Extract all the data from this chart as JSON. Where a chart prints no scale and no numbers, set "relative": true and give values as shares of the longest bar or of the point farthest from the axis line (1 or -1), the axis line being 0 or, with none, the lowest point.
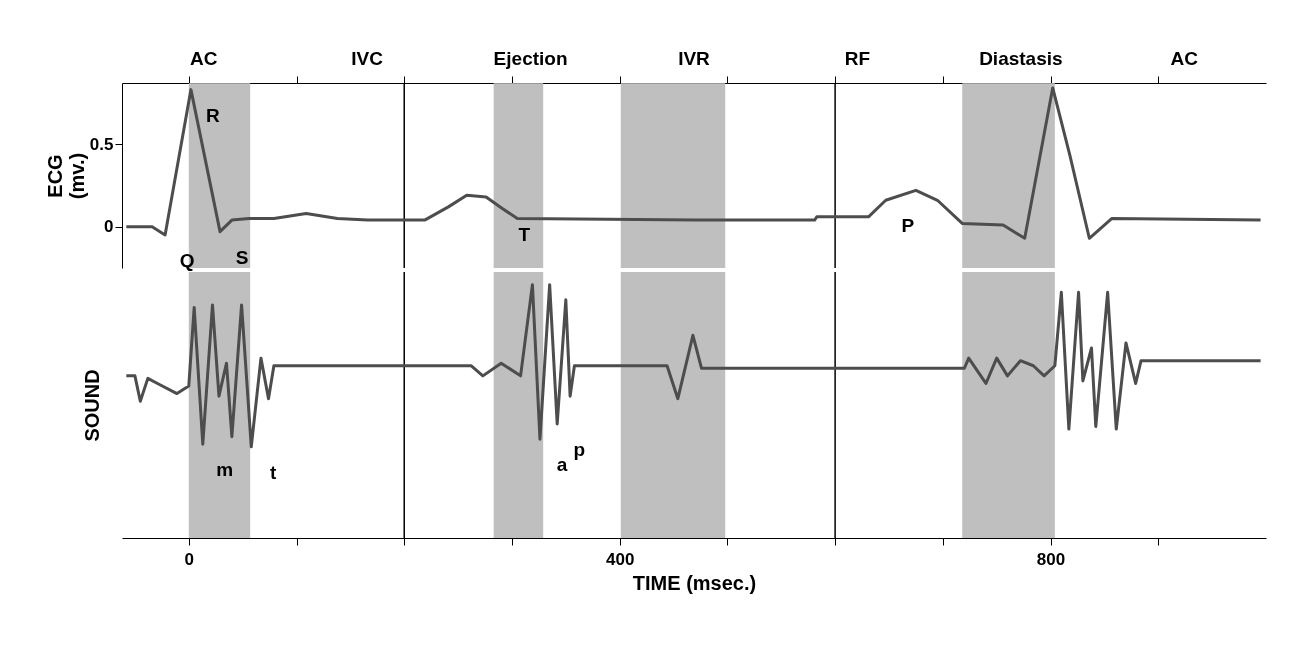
{
  "chart_data": [
    {
      "type": "line",
      "ylabel": "ECG (mv.)",
      "xlim": [
        -62,
        1000
      ],
      "ylim": [
        -0.25,
        0.87
      ],
      "yticks": [
        0,
        0.5
      ],
      "xticks": [
        {
          "value": 0,
          "label": null
        },
        {
          "value": 100,
          "label": null
        },
        {
          "value": 200,
          "label": null
        },
        {
          "value": 300,
          "label": null
        },
        {
          "value": 400,
          "label": null
        },
        {
          "value": 500,
          "label": null
        },
        {
          "value": 600,
          "label": null
        },
        {
          "value": 700,
          "label": null
        },
        {
          "value": 800,
          "label": null
        },
        {
          "value": 900,
          "label": null
        }
      ],
      "tick_labels": "y",
      "color": "#4d4d4d",
      "x": [
        -58,
        -34,
        -22,
        2,
        29,
        40,
        56,
        79,
        109,
        138,
        166,
        219,
        241,
        258,
        276,
        291,
        305,
        471,
        581,
        583,
        631,
        647,
        675,
        695,
        718,
        756,
        776,
        802,
        818,
        836,
        857,
        995
      ],
      "values": [
        0,
        0,
        -0.05,
        0.83,
        -0.03,
        0.04,
        0.05,
        0.05,
        0.08,
        0.05,
        0.04,
        0.04,
        0.12,
        0.19,
        0.18,
        0.11,
        0.05,
        0.04,
        0.04,
        0.06,
        0.06,
        0.16,
        0.22,
        0.16,
        0.02,
        0.01,
        -0.07,
        0.84,
        0.43,
        -0.07,
        0.05,
        0.04
      ],
      "bands": [
        {
          "axis": "x",
          "from": 0,
          "to": 57,
          "color": "#b4b4b4"
        },
        {
          "axis": "x",
          "from": 283,
          "to": 329,
          "color": "#b4b4b4"
        },
        {
          "axis": "x",
          "from": 401,
          "to": 498,
          "color": "#b4b4b4"
        },
        {
          "axis": "x",
          "from": 718,
          "to": 804,
          "color": "#b4b4b4"
        }
      ],
      "ref_lines": [
        {
          "axis": "x",
          "value": 200
        },
        {
          "axis": "x",
          "value": 600
        }
      ],
      "annotations": [
        "AC",
        "IVC",
        "Ejection",
        "IVR",
        "RF",
        "Diastasis",
        "AC",
        {
          "text": "R",
          "x": 2,
          "y": 0.83
        },
        {
          "text": "Q",
          "x": -22,
          "y": -0.05
        },
        {
          "text": "S",
          "x": 29,
          "y": -0.03
        },
        {
          "text": "T",
          "x": 291,
          "y": 0.11
        },
        {
          "text": "P",
          "x": 647,
          "y": 0.16
        }
      ]
    },
    {
      "type": "line",
      "relative": true,
      "ylabel": "SOUND",
      "xlabel": "TIME (msec.)",
      "xlim": [
        -62,
        1000
      ],
      "xticks": [
        0,
        {
          "value": 100,
          "label": null
        },
        {
          "value": 200,
          "label": null
        },
        {
          "value": 300,
          "label": null
        },
        400,
        {
          "value": 500,
          "label": null
        },
        {
          "value": 600,
          "label": null
        },
        {
          "value": 700,
          "label": null
        },
        800,
        {
          "value": 900,
          "label": null
        }
      ],
      "tick_labels": "x",
      "color": "#4d4d4d",
      "x": [
        -58,
        -50,
        -45,
        -38,
        -29,
        -11,
        0,
        5,
        13,
        22,
        28,
        35,
        40,
        49,
        58,
        67,
        74,
        79,
        262,
        273,
        290,
        308,
        319,
        326,
        335,
        342,
        350,
        354,
        358,
        444,
        454,
        468,
        476,
        720,
        724,
        740,
        750,
        760,
        772,
        784,
        794,
        804,
        810,
        817,
        826,
        830,
        838,
        842,
        853,
        861,
        870,
        879,
        884,
        995
      ],
      "values": [
        0.64,
        0.64,
        0.54,
        0.63,
        0.61,
        0.57,
        0.6,
        0.91,
        0.37,
        0.92,
        0.56,
        0.69,
        0.4,
        0.92,
        0.36,
        0.71,
        0.55,
        0.68,
        0.68,
        0.64,
        0.69,
        0.64,
        1,
        0.39,
        1,
        0.45,
        0.94,
        0.56,
        0.68,
        0.68,
        0.55,
        0.8,
        0.67,
        0.67,
        0.71,
        0.61,
        0.71,
        0.64,
        0.7,
        0.68,
        0.64,
        0.68,
        0.97,
        0.43,
        0.97,
        0.62,
        0.75,
        0.44,
        0.97,
        0.43,
        0.77,
        0.61,
        0.7,
        0.7
      ],
      "bands": [
        {
          "axis": "x",
          "from": 0,
          "to": 57,
          "color": "#b4b4b4"
        },
        {
          "axis": "x",
          "from": 283,
          "to": 329,
          "color": "#b4b4b4"
        },
        {
          "axis": "x",
          "from": 401,
          "to": 498,
          "color": "#b4b4b4"
        },
        {
          "axis": "x",
          "from": 718,
          "to": 804,
          "color": "#b4b4b4"
        }
      ],
      "ref_lines": [
        {
          "axis": "x",
          "value": 200
        },
        {
          "axis": "x",
          "value": 600
        }
      ],
      "annotations": [
        {
          "text": "m",
          "x": 13,
          "y": 0.37
        },
        {
          "text": "t",
          "x": 58,
          "y": 0.36
        },
        {
          "text": "a",
          "x": 326,
          "y": 0.39
        },
        {
          "text": "p",
          "x": 342,
          "y": 0.45
        }
      ]
    }
  ]
}
